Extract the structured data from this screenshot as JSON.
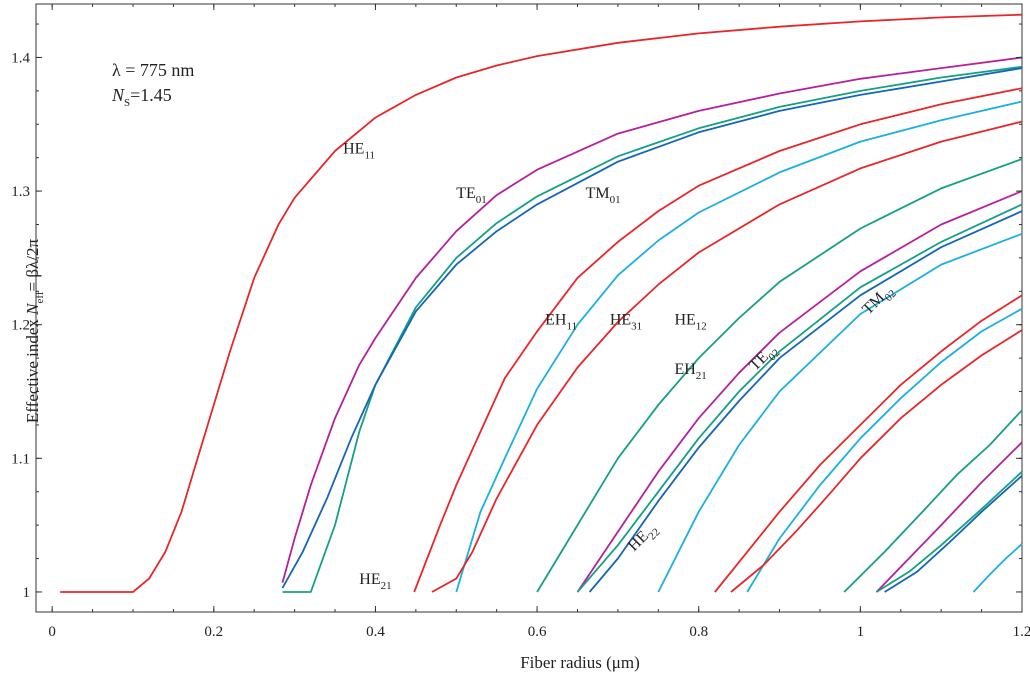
{
  "chart_data": {
    "type": "line",
    "title": "",
    "xlabel": "Fiber radius (μm)",
    "ylabel": "Effective index N_eff = βλ/2π",
    "ylabel_parts": {
      "pre": "Effective index ",
      "n": "N",
      "sub": "eff",
      "post": "= βλ/2π"
    },
    "xlim": [
      -0.02,
      1.2
    ],
    "ylim": [
      0.985,
      1.44
    ],
    "xticks": [
      0,
      0.2,
      0.4,
      0.6,
      0.8,
      1,
      1.2
    ],
    "xtick_labels": [
      "0",
      "0.2",
      "0.4",
      "0.6",
      "0.8",
      "1",
      "1.2"
    ],
    "yticks": [
      1,
      1.1,
      1.2,
      1.3,
      1.4
    ],
    "ytick_labels": [
      "1",
      "1.1",
      "1.2",
      "1.3",
      "1.4"
    ],
    "grid": false,
    "annotations": {
      "wavelength": "λ = 775 nm",
      "index_symbol": "N",
      "index_sub": "S",
      "index_value": "=1.45"
    },
    "mode_labels": [
      {
        "base": "HE",
        "sub": "11",
        "x": 0.36,
        "y": 1.328,
        "rot": 0
      },
      {
        "base": "TE",
        "sub": "01",
        "x": 0.5,
        "y": 1.295,
        "rot": 0
      },
      {
        "base": "TM",
        "sub": "01",
        "x": 0.66,
        "y": 1.295,
        "rot": 0
      },
      {
        "base": "EH",
        "sub": "11",
        "x": 0.61,
        "y": 1.2,
        "rot": 0
      },
      {
        "base": "HE",
        "sub": "31",
        "x": 0.69,
        "y": 1.2,
        "rot": 0
      },
      {
        "base": "HE",
        "sub": "12",
        "x": 0.77,
        "y": 1.2,
        "rot": 0
      },
      {
        "base": "EH",
        "sub": "21",
        "x": 0.77,
        "y": 1.163,
        "rot": 0
      },
      {
        "base": "TE",
        "sub": "02",
        "x": 0.87,
        "y": 1.165,
        "rot": -45
      },
      {
        "base": "TM",
        "sub": "02",
        "x": 1.01,
        "y": 1.207,
        "rot": -45
      },
      {
        "base": "HE",
        "sub": "22",
        "x": 0.72,
        "y": 1.03,
        "rot": -45
      },
      {
        "base": "HE",
        "sub": "21",
        "x": 0.38,
        "y": 1.006,
        "rot": 0
      }
    ],
    "series": [
      {
        "color": "#e8262a",
        "x": [
          0.01,
          0.1,
          0.12,
          0.14,
          0.16,
          0.18,
          0.2,
          0.22,
          0.25,
          0.28,
          0.3,
          0.35,
          0.4,
          0.45,
          0.5,
          0.55,
          0.6,
          0.7,
          0.8,
          0.9,
          1.0,
          1.1,
          1.2
        ],
        "y": [
          1.0,
          1.0,
          1.01,
          1.03,
          1.06,
          1.1,
          1.14,
          1.18,
          1.235,
          1.275,
          1.295,
          1.33,
          1.355,
          1.372,
          1.385,
          1.394,
          1.401,
          1.411,
          1.418,
          1.423,
          1.427,
          1.43,
          1.432
        ]
      },
      {
        "color": "#b5209f",
        "x": [
          0.285,
          0.3,
          0.32,
          0.35,
          0.38,
          0.4,
          0.45,
          0.5,
          0.55,
          0.6,
          0.7,
          0.8,
          0.9,
          1.0,
          1.1,
          1.2
        ],
        "y": [
          1.007,
          1.04,
          1.08,
          1.13,
          1.17,
          1.19,
          1.235,
          1.27,
          1.297,
          1.316,
          1.343,
          1.36,
          1.373,
          1.384,
          1.392,
          1.4
        ]
      },
      {
        "color": "#15a085",
        "x": [
          0.285,
          0.32,
          0.35,
          0.38,
          0.4,
          0.45,
          0.5,
          0.55,
          0.6,
          0.7,
          0.8,
          0.9,
          1.0,
          1.1,
          1.2
        ],
        "y": [
          1.0,
          1.0,
          1.05,
          1.12,
          1.155,
          1.213,
          1.25,
          1.276,
          1.296,
          1.326,
          1.347,
          1.363,
          1.375,
          1.385,
          1.393
        ]
      },
      {
        "color": "#1565b8",
        "x": [
          0.285,
          0.31,
          0.34,
          0.37,
          0.4,
          0.45,
          0.5,
          0.55,
          0.6,
          0.7,
          0.8,
          0.9,
          1.0,
          1.1,
          1.2
        ],
        "y": [
          1.003,
          1.03,
          1.07,
          1.115,
          1.155,
          1.21,
          1.245,
          1.27,
          1.29,
          1.322,
          1.344,
          1.36,
          1.372,
          1.382,
          1.392
        ]
      },
      {
        "color": "#e8262a",
        "x": [
          0.448,
          0.48,
          0.5,
          0.53,
          0.56,
          0.6,
          0.65,
          0.7,
          0.75,
          0.8,
          0.9,
          1.0,
          1.1,
          1.2
        ],
        "y": [
          1.0,
          1.05,
          1.08,
          1.12,
          1.16,
          1.195,
          1.235,
          1.262,
          1.285,
          1.304,
          1.33,
          1.35,
          1.365,
          1.377
        ]
      },
      {
        "color": "#1ab0e0",
        "x": [
          0.5,
          0.53,
          0.56,
          0.6,
          0.65,
          0.7,
          0.75,
          0.8,
          0.9,
          1.0,
          1.1,
          1.2
        ],
        "y": [
          1.0,
          1.06,
          1.1,
          1.152,
          1.2,
          1.237,
          1.263,
          1.284,
          1.314,
          1.337,
          1.353,
          1.367
        ]
      },
      {
        "color": "#e8262a",
        "x": [
          0.47,
          0.5,
          0.52,
          0.55,
          0.6,
          0.65,
          0.7,
          0.75,
          0.8,
          0.9,
          1.0,
          1.1,
          1.2
        ],
        "y": [
          1.0,
          1.01,
          1.03,
          1.07,
          1.125,
          1.168,
          1.202,
          1.23,
          1.254,
          1.29,
          1.317,
          1.337,
          1.352
        ]
      },
      {
        "color": "#15a085",
        "x": [
          0.6,
          0.65,
          0.7,
          0.75,
          0.8,
          0.85,
          0.9,
          1.0,
          1.1,
          1.2
        ],
        "y": [
          1.0,
          1.05,
          1.1,
          1.14,
          1.175,
          1.205,
          1.232,
          1.272,
          1.302,
          1.324
        ]
      },
      {
        "color": "#b5209f",
        "x": [
          0.65,
          0.7,
          0.75,
          0.8,
          0.85,
          0.9,
          1.0,
          1.1,
          1.2
        ],
        "y": [
          1.0,
          1.045,
          1.09,
          1.13,
          1.164,
          1.194,
          1.24,
          1.275,
          1.3
        ]
      },
      {
        "color": "#15a085",
        "x": [
          0.65,
          0.7,
          0.75,
          0.8,
          0.85,
          0.9,
          1.0,
          1.1,
          1.2
        ],
        "y": [
          1.0,
          1.035,
          1.075,
          1.115,
          1.15,
          1.18,
          1.228,
          1.262,
          1.29
        ]
      },
      {
        "color": "#1565b8",
        "x": [
          0.665,
          0.7,
          0.75,
          0.8,
          0.85,
          0.9,
          1.0,
          1.1,
          1.2
        ],
        "y": [
          1.0,
          1.025,
          1.068,
          1.108,
          1.143,
          1.175,
          1.222,
          1.258,
          1.285
        ]
      },
      {
        "color": "#1ab0e0",
        "x": [
          0.75,
          0.8,
          0.85,
          0.9,
          1.0,
          1.1,
          1.2
        ],
        "y": [
          1.0,
          1.06,
          1.11,
          1.15,
          1.208,
          1.245,
          1.268
        ]
      },
      {
        "color": "#e8262a",
        "x": [
          0.82,
          0.86,
          0.9,
          0.95,
          1.0,
          1.05,
          1.1,
          1.15,
          1.2
        ],
        "y": [
          1.0,
          1.03,
          1.06,
          1.095,
          1.125,
          1.155,
          1.18,
          1.203,
          1.222
        ]
      },
      {
        "color": "#1ab0e0",
        "x": [
          0.86,
          0.9,
          0.95,
          1.0,
          1.05,
          1.1,
          1.15,
          1.2
        ],
        "y": [
          1.0,
          1.04,
          1.08,
          1.115,
          1.145,
          1.172,
          1.195,
          1.212
        ]
      },
      {
        "color": "#e8262a",
        "x": [
          0.84,
          0.88,
          0.92,
          0.96,
          1.0,
          1.05,
          1.1,
          1.15,
          1.2
        ],
        "y": [
          1.0,
          1.02,
          1.045,
          1.072,
          1.1,
          1.13,
          1.155,
          1.177,
          1.196
        ]
      },
      {
        "color": "#15a085",
        "x": [
          0.98,
          1.03,
          1.08,
          1.12,
          1.16,
          1.2
        ],
        "y": [
          1.0,
          1.03,
          1.062,
          1.088,
          1.11,
          1.136
        ]
      },
      {
        "color": "#b5209f",
        "x": [
          1.02,
          1.06,
          1.1,
          1.15,
          1.2
        ],
        "y": [
          1.0,
          1.025,
          1.05,
          1.082,
          1.112
        ]
      },
      {
        "color": "#15a085",
        "x": [
          1.02,
          1.06,
          1.1,
          1.15,
          1.2
        ],
        "y": [
          1.0,
          1.015,
          1.035,
          1.062,
          1.09
        ]
      },
      {
        "color": "#1565b8",
        "x": [
          1.03,
          1.07,
          1.11,
          1.15,
          1.2
        ],
        "y": [
          1.0,
          1.015,
          1.037,
          1.06,
          1.087
        ]
      },
      {
        "color": "#1ab0e0",
        "x": [
          1.14,
          1.16,
          1.18,
          1.2
        ],
        "y": [
          1.0,
          1.013,
          1.025,
          1.036
        ]
      }
    ]
  }
}
